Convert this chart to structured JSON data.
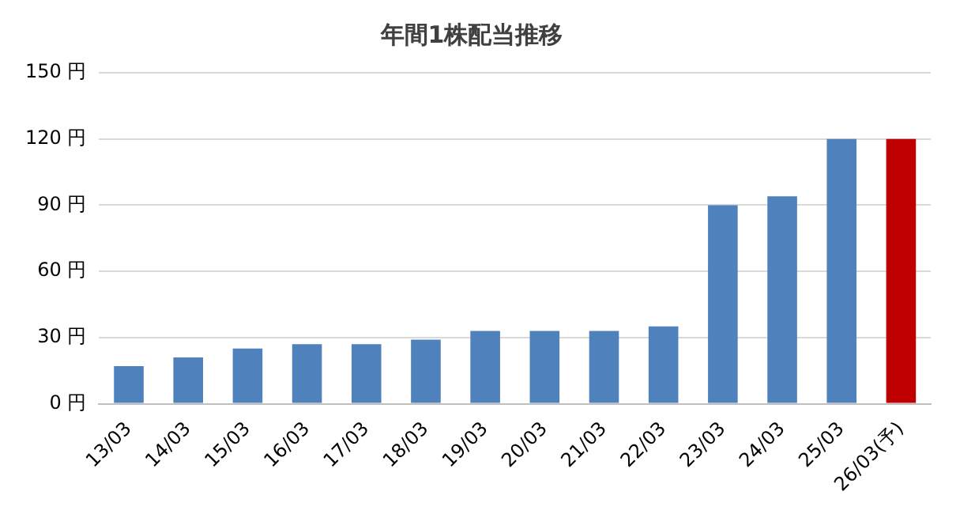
{
  "chart_data": {
    "type": "bar",
    "title": "年間1株配当推移",
    "categories": [
      "13/03",
      "14/03",
      "15/03",
      "16/03",
      "17/03",
      "18/03",
      "19/03",
      "20/03",
      "21/03",
      "22/03",
      "23/03",
      "24/03",
      "25/03",
      "26/03(予)"
    ],
    "values": [
      17,
      21,
      25,
      27,
      27,
      29,
      33,
      33,
      33,
      35,
      90,
      94,
      120,
      120
    ],
    "colors": [
      "#4f81bd",
      "#4f81bd",
      "#4f81bd",
      "#4f81bd",
      "#4f81bd",
      "#4f81bd",
      "#4f81bd",
      "#4f81bd",
      "#4f81bd",
      "#4f81bd",
      "#4f81bd",
      "#4f81bd",
      "#4f81bd",
      "#c00000"
    ],
    "ylim": [
      0,
      150
    ],
    "yticks": [
      {
        "value": 0,
        "label": "0 円"
      },
      {
        "value": 30,
        "label": "30 円"
      },
      {
        "value": 60,
        "label": "60 円"
      },
      {
        "value": 90,
        "label": "90 円"
      },
      {
        "value": 120,
        "label": "120 円"
      },
      {
        "value": 150,
        "label": "150 円"
      }
    ],
    "grid": "y",
    "legend": false
  }
}
